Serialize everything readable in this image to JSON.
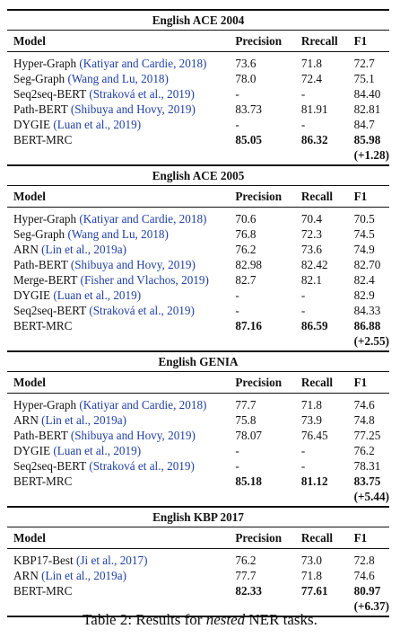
{
  "caption": {
    "prefix": "Table 2: Results for ",
    "emph": "nested",
    "suffix": " NER tasks."
  },
  "sections": [
    {
      "title": "English ACE 2004",
      "headers": [
        "Model",
        "Precision",
        "Rrecall",
        "F1"
      ],
      "rows": [
        {
          "model": "Hyper-Graph ",
          "cite": "(Katiyar and Cardie, 2018)",
          "p": "73.6",
          "r": "71.8",
          "f1": "72.7"
        },
        {
          "model": "Seg-Graph ",
          "cite": "(Wang and Lu, 2018)",
          "p": "78.0",
          "r": "72.4",
          "f1": "75.1"
        },
        {
          "model": "Seq2seq-BERT ",
          "cite": "(Straková et al., 2019)",
          "p": "-",
          "r": "-",
          "f1": "84.40"
        },
        {
          "model": "Path-BERT ",
          "cite": "(Shibuya and Hovy, 2019)",
          "p": "83.73",
          "r": "81.91",
          "f1": "82.81"
        },
        {
          "model": "DYGIE ",
          "cite": "(Luan et al., 2019)",
          "p": "-",
          "r": "-",
          "f1": "84.7"
        },
        {
          "model": "BERT-MRC",
          "cite": "",
          "p": "85.05",
          "r": "86.32",
          "f1": "85.98",
          "gain": "(+1.28)",
          "bold": true
        }
      ]
    },
    {
      "title": "English ACE 2005",
      "headers": [
        "Model",
        "Precision",
        "Recall",
        "F1"
      ],
      "rows": [
        {
          "model": "Hyper-Graph ",
          "cite": "(Katiyar and Cardie, 2018)",
          "p": "70.6",
          "r": "70.4",
          "f1": "70.5"
        },
        {
          "model": "Seg-Graph ",
          "cite": "(Wang and Lu, 2018)",
          "p": "76.8",
          "r": "72.3",
          "f1": "74.5"
        },
        {
          "model": "ARN ",
          "cite": "(Lin et al., 2019a)",
          "p": "76.2",
          "r": "73.6",
          "f1": "74.9"
        },
        {
          "model": "Path-BERT ",
          "cite": "(Shibuya and Hovy, 2019)",
          "p": "82.98",
          "r": "82.42",
          "f1": "82.70"
        },
        {
          "model": "Merge-BERT ",
          "cite": "(Fisher and Vlachos, 2019)",
          "p": "82.7",
          "r": "82.1",
          "f1": "82.4"
        },
        {
          "model": "DYGIE ",
          "cite": "(Luan et al., 2019)",
          "p": "-",
          "r": "-",
          "f1": "82.9"
        },
        {
          "model": "Seq2seq-BERT ",
          "cite": "(Straková et al., 2019)",
          "p": "-",
          "r": "-",
          "f1": "84.33"
        },
        {
          "model": "BERT-MRC",
          "cite": "",
          "p": "87.16",
          "r": "86.59",
          "f1": "86.88",
          "gain": "(+2.55)",
          "bold": true
        }
      ]
    },
    {
      "title": "English GENIA",
      "headers": [
        "Model",
        "Precision",
        "Recall",
        "F1"
      ],
      "rows": [
        {
          "model": "Hyper-Graph ",
          "cite": "(Katiyar and Cardie, 2018)",
          "p": "77.7",
          "r": "71.8",
          "f1": "74.6"
        },
        {
          "model": "ARN ",
          "cite": "(Lin et al., 2019a)",
          "p": "75.8",
          "r": "73.9",
          "f1": "74.8"
        },
        {
          "model": "Path-BERT ",
          "cite": "(Shibuya and Hovy, 2019)",
          "p": "78.07",
          "r": "76.45",
          "f1": "77.25"
        },
        {
          "model": "DYGIE ",
          "cite": "(Luan et al., 2019)",
          "p": "-",
          "r": "-",
          "f1": "76.2"
        },
        {
          "model": "Seq2seq-BERT ",
          "cite": "(Straková et al., 2019)",
          "p": "-",
          "r": "-",
          "f1": "78.31"
        },
        {
          "model": "BERT-MRC",
          "cite": "",
          "p": "85.18",
          "r": "81.12",
          "f1": "83.75",
          "gain": "(+5.44)",
          "bold": true
        }
      ]
    },
    {
      "title": "English KBP 2017",
      "headers": [
        "Model",
        "Precision",
        "Recall",
        "F1"
      ],
      "rows": [
        {
          "model": "KBP17-Best ",
          "cite": "(Ji et al., 2017)",
          "p": "76.2",
          "r": "73.0",
          "f1": "72.8"
        },
        {
          "model": "ARN ",
          "cite": "(Lin et al., 2019a)",
          "p": "77.7",
          "r": "71.8",
          "f1": "74.6"
        },
        {
          "model": "BERT-MRC",
          "cite": "",
          "p": "82.33",
          "r": "77.61",
          "f1": "80.97",
          "gain": "(+6.37)",
          "bold": true
        }
      ]
    }
  ],
  "colors": {
    "citation": "#1f3fa3",
    "text": "#111111",
    "background": "#ffffff"
  }
}
